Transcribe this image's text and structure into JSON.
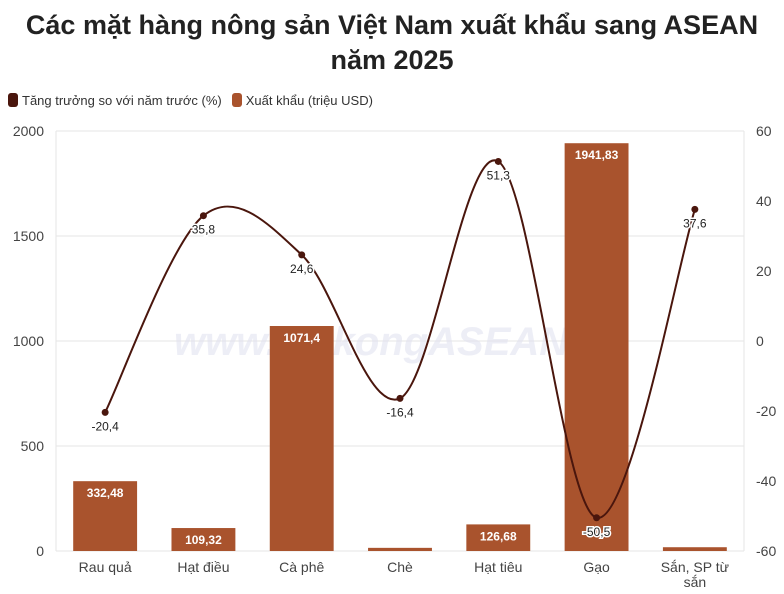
{
  "chart_data": {
    "type": "bar",
    "title": "Các mặt hàng nông sản Việt Nam xuất khẩu sang ASEAN năm 2025",
    "categories": [
      "Rau quả",
      "Hạt điều",
      "Cà phê",
      "Chè",
      "Hạt tiêu",
      "Gạo",
      "Sắn, SP từ sắn"
    ],
    "series": [
      {
        "name": "Xuất khẩu (triệu USD)",
        "type": "bar",
        "axis": "left",
        "color": "#a9532d",
        "values": [
          332.48,
          109.32,
          1071.4,
          15,
          126.68,
          1941.83,
          18
        ],
        "labels": [
          "332,48",
          "109,32",
          "1071,4",
          "",
          "126,68",
          "1941,83",
          ""
        ]
      },
      {
        "name": "Tăng trưởng so với năm trước (%)",
        "type": "line",
        "axis": "right",
        "color": "#4a160d",
        "values": [
          -20.4,
          35.8,
          24.6,
          -16.4,
          51.3,
          -50.5,
          37.6
        ],
        "labels": [
          "-20,4",
          "35,8",
          "24,6",
          "-16,4",
          "51,3",
          "-50,5",
          "37,6"
        ]
      }
    ],
    "left_axis": {
      "min": 0,
      "max": 2000,
      "ticks": [
        "0",
        "500",
        "1000",
        "1500",
        "2000"
      ]
    },
    "right_axis": {
      "min": -60,
      "max": 60,
      "ticks": [
        "-60",
        "-40",
        "-20",
        "0",
        "20",
        "40",
        "60"
      ]
    },
    "grid": true,
    "legend_position": "top-left",
    "watermark": "www.MekongASEAN.vn"
  }
}
